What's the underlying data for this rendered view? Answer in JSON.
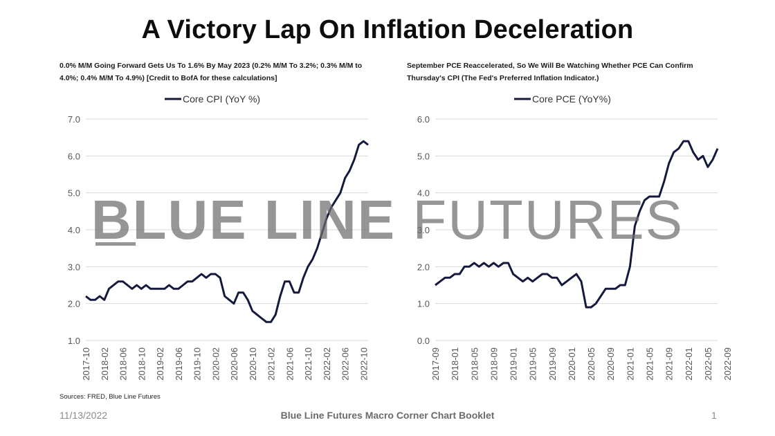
{
  "title": "A Victory Lap On Inflation Deceleration",
  "subtitle_left": "0.0% M/M Going Forward Gets Us To 1.6% By May 2023 (0.2% M/M To 3.2%; 0.3% M/M to 4.0%; 0.4% M/M To 4.9%) [Credit to BofA for these calculations]",
  "subtitle_right": "September PCE Reaccelerated, So We Will Be Watching Whether PCE Can Confirm Thursday's CPI (The Fed's Preferred Inflation Indicator.)",
  "watermark": {
    "bold": "BLUE LINE",
    "light": " FUTURES"
  },
  "sources": "Sources: FRED, Blue Line Futures",
  "footer": {
    "date": "11/13/2022",
    "center": "Blue Line Futures Macro Corner Chart Booklet",
    "page": "1"
  },
  "colors": {
    "line": "#151a3d",
    "grid": "#d9d9d9",
    "watermark": "#6e6e6e"
  },
  "chart_data": [
    {
      "type": "line",
      "legend": "Core CPI (YoY %)",
      "ylim": [
        1.0,
        7.0
      ],
      "yticks": [
        "1.0",
        "2.0",
        "3.0",
        "4.0",
        "5.0",
        "6.0",
        "7.0"
      ],
      "xticks": [
        "2017-10",
        "2018-02",
        "2018-06",
        "2018-10",
        "2019-02",
        "2019-06",
        "2019-10",
        "2020-02",
        "2020-06",
        "2020-10",
        "2021-02",
        "2021-06",
        "2021-10",
        "2022-02",
        "2022-06",
        "2022-10"
      ],
      "start": "2017-10",
      "values": [
        2.2,
        2.1,
        2.1,
        2.2,
        2.1,
        2.4,
        2.5,
        2.6,
        2.6,
        2.5,
        2.4,
        2.5,
        2.4,
        2.5,
        2.4,
        2.4,
        2.4,
        2.4,
        2.5,
        2.4,
        2.4,
        2.5,
        2.6,
        2.6,
        2.7,
        2.8,
        2.7,
        2.8,
        2.8,
        2.7,
        2.2,
        2.1,
        2.0,
        2.3,
        2.3,
        2.1,
        1.8,
        1.7,
        1.6,
        1.5,
        1.5,
        1.7,
        2.2,
        2.6,
        2.6,
        2.3,
        2.3,
        2.7,
        3.0,
        3.2,
        3.5,
        3.9,
        4.3,
        4.6,
        4.8,
        5.0,
        5.4,
        5.6,
        5.9,
        6.3,
        6.4,
        6.3
      ]
    },
    {
      "type": "line",
      "legend": "Core PCE (YoY%)",
      "ylim": [
        0.0,
        6.0
      ],
      "yticks": [
        "0.0",
        "1.0",
        "2.0",
        "3.0",
        "4.0",
        "5.0",
        "6.0"
      ],
      "xticks": [
        "2017-09",
        "2018-01",
        "2018-05",
        "2018-09",
        "2019-01",
        "2019-05",
        "2019-09",
        "2020-01",
        "2020-05",
        "2020-09",
        "2021-01",
        "2021-05",
        "2021-09",
        "2022-01",
        "2022-05",
        "2022-09"
      ],
      "start": "2017-09",
      "values": [
        1.5,
        1.6,
        1.7,
        1.7,
        1.8,
        1.8,
        2.0,
        2.0,
        2.1,
        2.0,
        2.1,
        2.0,
        2.1,
        2.0,
        2.1,
        2.1,
        1.8,
        1.7,
        1.6,
        1.7,
        1.6,
        1.7,
        1.8,
        1.8,
        1.7,
        1.7,
        1.5,
        1.6,
        1.7,
        1.8,
        1.6,
        0.9,
        0.9,
        1.0,
        1.2,
        1.4,
        1.4,
        1.4,
        1.5,
        1.5,
        2.0,
        3.1,
        3.5,
        3.8,
        3.9,
        3.9,
        3.9,
        4.3,
        4.8,
        5.1,
        5.2,
        5.4,
        5.4,
        5.1,
        4.9,
        5.0,
        4.7,
        4.9,
        5.2
      ]
    }
  ]
}
